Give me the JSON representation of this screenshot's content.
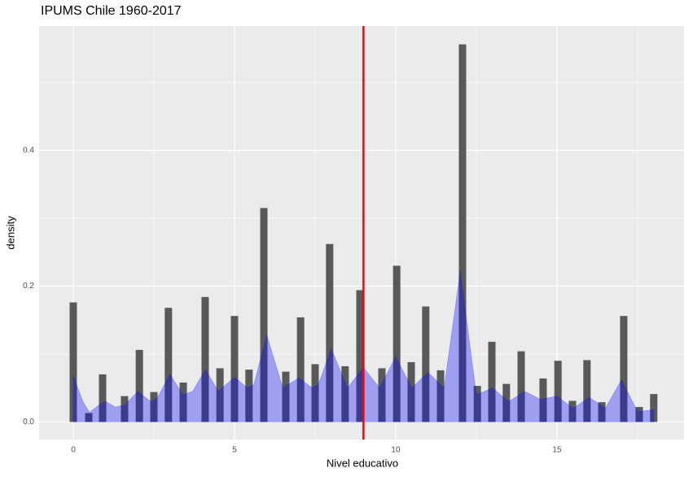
{
  "chart_data": {
    "type": "histogram_density",
    "title": "IPUMS Chile 1960-2017",
    "x_label": "Nivel educativo",
    "y_label": "density",
    "bars": {
      "color": "#595959",
      "x": [
        0,
        0.48,
        0.91,
        1.59,
        2.05,
        2.5,
        2.95,
        3.41,
        4.09,
        4.55,
        5.0,
        5.45,
        5.91,
        6.59,
        7.05,
        7.5,
        7.95,
        8.43,
        8.89,
        9.57,
        10.03,
        10.48,
        10.93,
        11.39,
        12.07,
        12.53,
        12.98,
        13.43,
        13.89,
        14.57,
        15.03,
        15.48,
        15.93,
        16.39,
        17.07,
        17.55,
        18.0
      ],
      "values": [
        0.176,
        0.013,
        0.07,
        0.038,
        0.106,
        0.044,
        0.168,
        0.058,
        0.184,
        0.079,
        0.156,
        0.077,
        0.315,
        0.074,
        0.154,
        0.085,
        0.262,
        0.082,
        0.194,
        0.079,
        0.23,
        0.088,
        0.17,
        0.076,
        0.556,
        0.053,
        0.118,
        0.056,
        0.104,
        0.064,
        0.09,
        0.031,
        0.091,
        0.029,
        0.156,
        0.022,
        0.041
      ]
    },
    "density": {
      "color": "#0000ff",
      "x": [
        0,
        0.3,
        0.5,
        0.8,
        1,
        1.3,
        1.6,
        2,
        2.4,
        2.6,
        3,
        3.4,
        3.7,
        4.1,
        4.5,
        5,
        5.4,
        5.6,
        6,
        6.5,
        7,
        7.4,
        7.6,
        8,
        8.5,
        9,
        9.5,
        10,
        10.5,
        11,
        11.5,
        12,
        12.5,
        13,
        13.5,
        14,
        14.5,
        15,
        15.5,
        16,
        16.5,
        17,
        17.5,
        18
      ],
      "values": [
        0.068,
        0.03,
        0.014,
        0.025,
        0.03,
        0.022,
        0.025,
        0.045,
        0.03,
        0.035,
        0.07,
        0.04,
        0.045,
        0.077,
        0.045,
        0.066,
        0.05,
        0.055,
        0.128,
        0.05,
        0.065,
        0.05,
        0.055,
        0.108,
        0.05,
        0.08,
        0.05,
        0.096,
        0.05,
        0.073,
        0.05,
        0.222,
        0.04,
        0.05,
        0.03,
        0.045,
        0.033,
        0.038,
        0.02,
        0.036,
        0.02,
        0.062,
        0.015,
        0.018
      ]
    },
    "vline": {
      "x": 9,
      "color": "#ff0000"
    },
    "xlim": [
      -1.06,
      18.94
    ],
    "ylim": [
      -0.026,
      0.583
    ],
    "xticks": [
      0,
      5,
      10,
      15
    ],
    "yticks": [
      {
        "value": 0,
        "label": "0.0"
      },
      0.2,
      0.4
    ],
    "minor_xticks": [
      2.5,
      7.5,
      12.5,
      17.5
    ],
    "minor_yticks": [
      0.1,
      0.3,
      0.5
    ],
    "grid": true
  }
}
